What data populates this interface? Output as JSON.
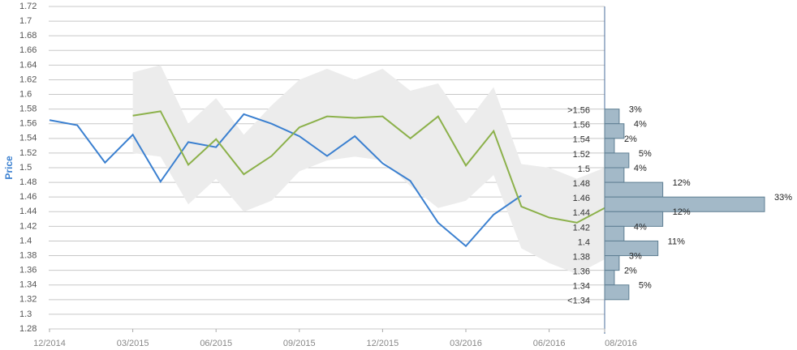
{
  "chart_data": [
    {
      "type": "line",
      "y_label": "Price",
      "categories": [
        "12/2014",
        null,
        null,
        "03/2015",
        null,
        null,
        "06/2015",
        null,
        null,
        "09/2015",
        null,
        null,
        "12/2015",
        null,
        null,
        "03/2016",
        null,
        null,
        "06/2016",
        null,
        "08/2016"
      ],
      "ylim": [
        1.28,
        1.72
      ],
      "yticks": [
        1.28,
        1.3,
        1.32,
        1.34,
        1.36,
        1.38,
        1.4,
        1.42,
        1.44,
        1.46,
        1.48,
        1.5,
        1.52,
        1.54,
        1.56,
        1.58,
        1.6,
        1.62,
        1.64,
        1.66,
        1.68,
        1.7,
        1.72
      ],
      "grid": true,
      "band": {
        "color": "#ececec",
        "upper": [
          null,
          null,
          null,
          1.63,
          1.64,
          1.56,
          1.595,
          1.545,
          1.585,
          1.62,
          1.635,
          1.62,
          1.635,
          1.605,
          1.615,
          1.56,
          1.61,
          1.505,
          1.5,
          1.485,
          1.5
        ],
        "lower": [
          null,
          null,
          null,
          1.52,
          1.515,
          1.45,
          1.485,
          1.44,
          1.455,
          1.495,
          1.51,
          1.515,
          1.51,
          1.475,
          1.445,
          1.455,
          1.49,
          1.39,
          1.37,
          1.355,
          1.375
        ]
      },
      "series": [
        {
          "color": "#3b80d0",
          "values": [
            1.565,
            1.558,
            1.507,
            1.545,
            1.481,
            1.535,
            1.528,
            1.573,
            1.56,
            1.543,
            1.516,
            1.543,
            1.506,
            1.482,
            1.425,
            1.393,
            1.436,
            1.462,
            null,
            null,
            null
          ]
        },
        {
          "color": "#8cb14b",
          "values": [
            null,
            null,
            null,
            1.571,
            1.577,
            1.504,
            1.539,
            1.491,
            1.516,
            1.555,
            1.57,
            1.568,
            1.57,
            1.54,
            1.57,
            1.503,
            1.55,
            1.447,
            1.432,
            1.425,
            1.445
          ]
        }
      ]
    },
    {
      "type": "histogram",
      "orientation": "horizontal",
      "color": "#a3b9c8",
      "bins": [
        {
          "value": 1.58,
          "label": ">1.56"
        },
        1.56,
        1.54,
        1.52,
        1.5,
        1.48,
        1.46,
        1.44,
        1.42,
        1.4,
        1.38,
        1.36,
        1.34,
        {
          "value": 1.32,
          "label": "<1.34"
        }
      ],
      "values": [
        3,
        4,
        2,
        5,
        4,
        12,
        33,
        12,
        4,
        11,
        3,
        2,
        5
      ],
      "value_labels": [
        "3%",
        "4%",
        "2%",
        "5%",
        "4%",
        "12%",
        "33%",
        "12%",
        "4%",
        "11%",
        "3%",
        "2%",
        "5%"
      ]
    }
  ]
}
